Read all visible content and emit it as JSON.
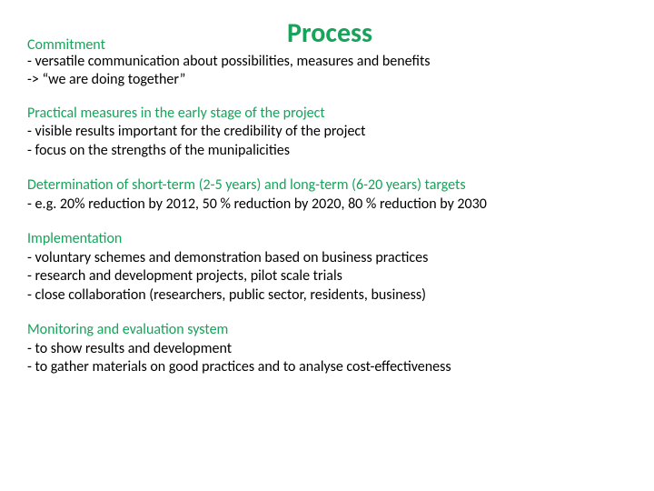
{
  "colors": {
    "title": "#17a35a",
    "section_head": "#17a35a",
    "body": "#000000",
    "background": "#ffffff"
  },
  "typography": {
    "title_fontsize_pt": 22,
    "body_fontsize_pt": 12,
    "font_family": "Calibri",
    "title_weight": "bold"
  },
  "title": "Process",
  "sections": {
    "commitment": {
      "heading": "Commitment",
      "lines": [
        "- versatile communication about possibilities, measures and benefits",
        "-> “we are doing together”"
      ]
    },
    "practical": {
      "heading": "Practical measures in the early stage of the project",
      "lines": [
        "- visible results important for the credibility of the project",
        "- focus on the strengths of the munipalicities"
      ]
    },
    "targets": {
      "heading": "Determination of short-term (2-5 years) and long-term (6-20 years) targets",
      "lines": [
        "- e.g. 20% reduction by 2012, 50 % reduction by 2020, 80 % reduction by 2030"
      ]
    },
    "implementation": {
      "heading": "Implementation",
      "lines": [
        "- voluntary schemes and demonstration based on business practices",
        "- research and development projects, pilot scale trials",
        "- close collaboration (researchers, public sector, residents, business)"
      ]
    },
    "monitoring": {
      "heading": "Monitoring and evaluation system",
      "lines": [
        "- to show results and development",
        "- to gather materials on good practices and to analyse cost-effectiveness"
      ]
    }
  }
}
